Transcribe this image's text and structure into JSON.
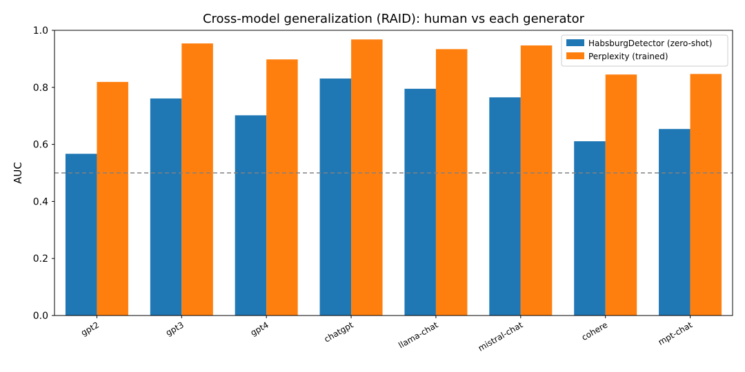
{
  "chart_data": {
    "type": "bar",
    "title": "Cross-model generalization (RAID): human vs each generator",
    "xlabel": "",
    "ylabel": "AUC",
    "ylim": [
      0,
      1.0
    ],
    "yticks": [
      "0.0",
      "0.2",
      "0.4",
      "0.6",
      "0.8",
      "1.0"
    ],
    "categories": [
      "gpt2",
      "gpt3",
      "gpt4",
      "chatgpt",
      "llama-chat",
      "mistral-chat",
      "cohere",
      "mpt-chat"
    ],
    "series": [
      {
        "name": "HabsburgDetector (zero-shot)",
        "color": "#1f77b4",
        "values": [
          0.567,
          0.761,
          0.702,
          0.831,
          0.795,
          0.765,
          0.611,
          0.654
        ]
      },
      {
        "name": "Perplexity (trained)",
        "color": "#ff7f0e",
        "values": [
          0.819,
          0.954,
          0.898,
          0.968,
          0.934,
          0.947,
          0.845,
          0.847
        ]
      }
    ],
    "reference_line": {
      "y": 0.5,
      "style": "dashed",
      "color": "#808080"
    },
    "legend_position": "top-right",
    "grid": false
  }
}
